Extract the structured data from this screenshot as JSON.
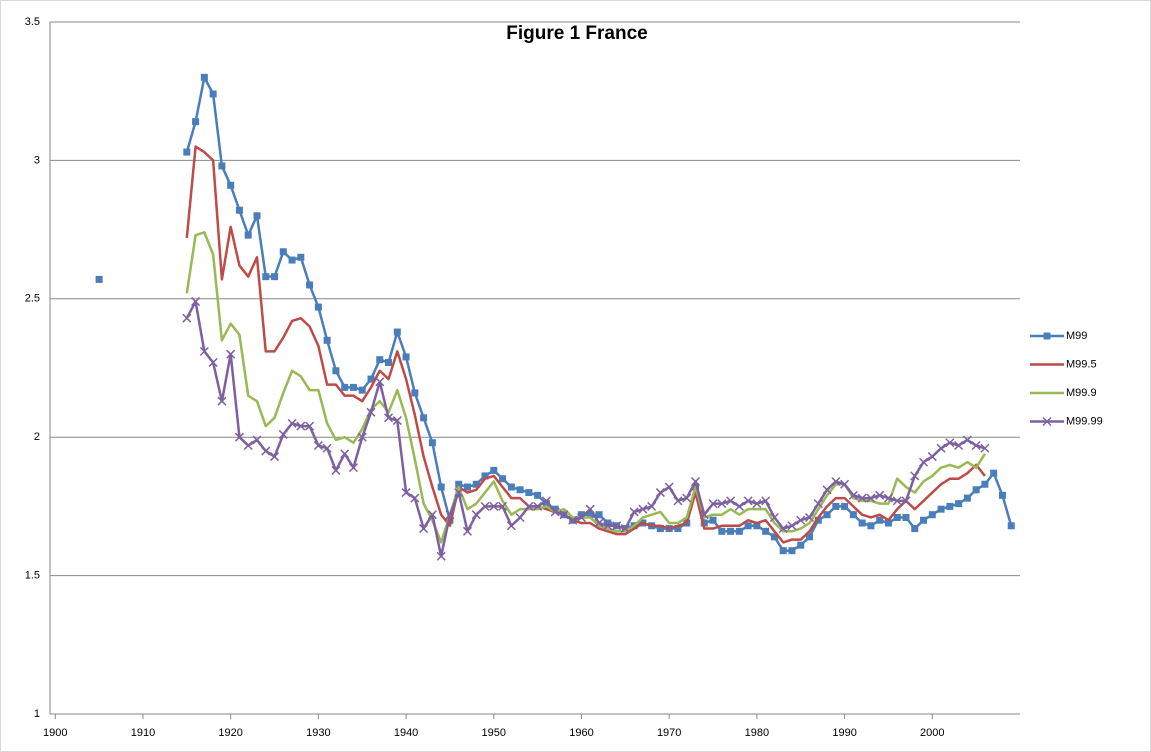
{
  "chart_data": {
    "type": "line",
    "title": "Figure 1 France",
    "x": [
      1905,
      1906,
      1907,
      1908,
      1909,
      1910,
      1911,
      1912,
      1913,
      1914,
      1915,
      1916,
      1917,
      1918,
      1919,
      1920,
      1921,
      1922,
      1923,
      1924,
      1925,
      1926,
      1927,
      1928,
      1929,
      1930,
      1931,
      1932,
      1933,
      1934,
      1935,
      1936,
      1937,
      1938,
      1939,
      1940,
      1941,
      1942,
      1943,
      1944,
      1945,
      1946,
      1947,
      1948,
      1949,
      1950,
      1951,
      1952,
      1953,
      1954,
      1955,
      1956,
      1957,
      1958,
      1959,
      1960,
      1961,
      1962,
      1963,
      1964,
      1965,
      1966,
      1967,
      1968,
      1969,
      1970,
      1971,
      1972,
      1973,
      1974,
      1975,
      1976,
      1977,
      1978,
      1979,
      1980,
      1981,
      1982,
      1983,
      1984,
      1985,
      1986,
      1987,
      1988,
      1989,
      1990,
      1991,
      1992,
      1993,
      1994,
      1995,
      1996,
      1997,
      1998,
      1999,
      2000,
      2001,
      2002,
      2003,
      2004,
      2005,
      2006,
      2007,
      2008,
      2009
    ],
    "series": [
      {
        "name": "M99",
        "color": "#4a7ebb",
        "marker": "square",
        "values": [
          2.57,
          null,
          null,
          null,
          null,
          null,
          null,
          null,
          null,
          null,
          3.03,
          3.14,
          3.3,
          3.24,
          2.98,
          2.91,
          2.82,
          2.73,
          2.8,
          2.58,
          2.58,
          2.67,
          2.64,
          2.65,
          2.55,
          2.47,
          2.35,
          2.24,
          2.18,
          2.18,
          2.17,
          2.21,
          2.28,
          2.27,
          2.38,
          2.29,
          2.16,
          2.07,
          1.98,
          1.82,
          1.7,
          1.83,
          1.82,
          1.83,
          1.86,
          1.88,
          1.85,
          1.82,
          1.81,
          1.8,
          1.79,
          1.76,
          1.74,
          1.72,
          1.7,
          1.72,
          1.72,
          1.72,
          1.69,
          1.68,
          1.67,
          1.68,
          1.69,
          1.68,
          1.67,
          1.67,
          1.67,
          1.69,
          1.82,
          1.69,
          1.7,
          1.66,
          1.66,
          1.66,
          1.68,
          1.68,
          1.66,
          1.64,
          1.59,
          1.59,
          1.61,
          1.64,
          1.7,
          1.72,
          1.75,
          1.75,
          1.72,
          1.69,
          1.68,
          1.7,
          1.69,
          1.71,
          1.71,
          1.67,
          1.7,
          1.72,
          1.74,
          1.75,
          1.76,
          1.78,
          1.81,
          1.83,
          1.87,
          1.79,
          1.68
        ]
      },
      {
        "name": "M99.5",
        "color": "#be4b48",
        "marker": "none",
        "values": [
          null,
          null,
          null,
          null,
          null,
          null,
          null,
          null,
          null,
          null,
          2.72,
          3.05,
          3.03,
          3.0,
          2.57,
          2.76,
          2.62,
          2.58,
          2.65,
          2.31,
          2.31,
          2.36,
          2.42,
          2.43,
          2.4,
          2.33,
          2.19,
          2.19,
          2.15,
          2.15,
          2.13,
          2.18,
          2.24,
          2.21,
          2.31,
          2.21,
          2.08,
          1.93,
          1.82,
          1.72,
          1.68,
          1.82,
          1.8,
          1.81,
          1.85,
          1.86,
          1.82,
          1.78,
          1.78,
          1.75,
          1.75,
          1.74,
          1.73,
          1.72,
          1.7,
          1.69,
          1.69,
          1.67,
          1.66,
          1.65,
          1.65,
          1.67,
          1.69,
          1.68,
          1.68,
          1.67,
          1.68,
          1.69,
          1.8,
          1.67,
          1.67,
          1.68,
          1.68,
          1.68,
          1.7,
          1.69,
          1.7,
          1.66,
          1.62,
          1.63,
          1.63,
          1.66,
          1.71,
          1.75,
          1.78,
          1.78,
          1.75,
          1.72,
          1.71,
          1.72,
          1.7,
          1.74,
          1.77,
          1.74,
          1.77,
          1.8,
          1.83,
          1.85,
          1.85,
          1.87,
          1.9,
          1.86,
          null,
          null,
          null
        ]
      },
      {
        "name": "M99.9",
        "color": "#98b954",
        "marker": "none",
        "values": [
          null,
          null,
          null,
          null,
          null,
          null,
          null,
          null,
          null,
          null,
          2.52,
          2.73,
          2.74,
          2.66,
          2.35,
          2.41,
          2.37,
          2.15,
          2.13,
          2.04,
          2.07,
          2.16,
          2.24,
          2.22,
          2.17,
          2.17,
          2.05,
          1.99,
          2.0,
          1.98,
          2.03,
          2.1,
          2.13,
          2.09,
          2.17,
          2.07,
          1.92,
          1.76,
          1.7,
          1.62,
          1.72,
          1.82,
          1.74,
          1.76,
          1.8,
          1.84,
          1.77,
          1.72,
          1.74,
          1.74,
          1.74,
          1.75,
          1.73,
          1.74,
          1.71,
          1.71,
          1.71,
          1.68,
          1.67,
          1.66,
          1.66,
          1.68,
          1.71,
          1.72,
          1.73,
          1.69,
          1.69,
          1.71,
          1.82,
          1.71,
          1.72,
          1.72,
          1.74,
          1.72,
          1.74,
          1.74,
          1.74,
          1.69,
          1.66,
          1.66,
          1.67,
          1.69,
          1.74,
          1.79,
          1.83,
          1.83,
          1.78,
          1.77,
          1.77,
          1.76,
          1.76,
          1.85,
          1.82,
          1.8,
          1.84,
          1.86,
          1.89,
          1.9,
          1.89,
          1.91,
          1.89,
          1.94,
          null,
          null,
          null
        ]
      },
      {
        "name": "M99.99",
        "color": "#7d60a0",
        "marker": "x",
        "values": [
          null,
          null,
          null,
          null,
          null,
          null,
          null,
          null,
          null,
          null,
          2.43,
          2.49,
          2.31,
          2.27,
          2.13,
          2.3,
          2.0,
          1.97,
          1.99,
          1.95,
          1.93,
          2.01,
          2.05,
          2.04,
          2.04,
          1.97,
          1.96,
          1.88,
          1.94,
          1.89,
          2.0,
          2.09,
          2.2,
          2.07,
          2.06,
          1.8,
          1.78,
          1.67,
          1.72,
          1.57,
          1.72,
          1.8,
          1.66,
          1.72,
          1.75,
          1.75,
          1.75,
          1.68,
          1.71,
          1.75,
          1.75,
          1.77,
          1.73,
          1.72,
          1.7,
          1.71,
          1.74,
          1.69,
          1.68,
          1.68,
          1.67,
          1.73,
          1.74,
          1.75,
          1.8,
          1.82,
          1.77,
          1.78,
          1.84,
          1.72,
          1.76,
          1.76,
          1.77,
          1.75,
          1.77,
          1.76,
          1.77,
          1.71,
          1.67,
          1.68,
          1.7,
          1.71,
          1.76,
          1.81,
          1.84,
          1.83,
          1.79,
          1.78,
          1.78,
          1.79,
          1.78,
          1.77,
          1.77,
          1.86,
          1.91,
          1.93,
          1.96,
          1.98,
          1.97,
          1.99,
          1.97,
          1.96,
          null,
          null,
          null
        ]
      }
    ],
    "xlim": [
      1899.4,
      2010
    ],
    "xticks": [
      1900,
      1910,
      1920,
      1930,
      1940,
      1950,
      1960,
      1970,
      1980,
      1990,
      2000
    ],
    "ylim": [
      1,
      3.5
    ],
    "yticks": [
      1,
      1.5,
      2,
      2.5,
      3,
      3.5
    ],
    "grid": true,
    "legend": "right"
  }
}
